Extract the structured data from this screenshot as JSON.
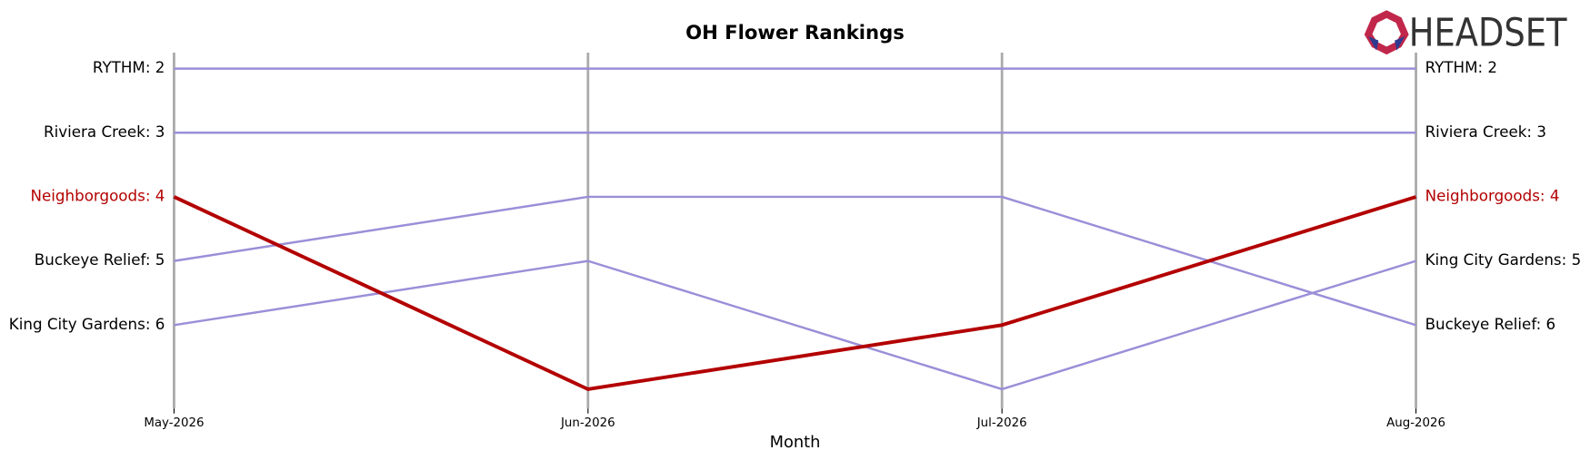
{
  "chart_data": {
    "type": "bump",
    "title": "OH Flower Rankings",
    "x_label": "Month",
    "logo": "HEADSET",
    "categories": [
      "May-2026",
      "Jun-2026",
      "Jul-2026",
      "Aug-2026"
    ],
    "ylim": [
      7.3,
      1.75
    ],
    "inverted": true,
    "series": [
      {
        "name": "RYTHM",
        "color": "#9a8fd8",
        "values": [
          2,
          2,
          2,
          2
        ],
        "value_labels": [
          "RYTHM: 2",
          null,
          null,
          "RYTHM: 2"
        ]
      },
      {
        "name": "Riviera Creek",
        "color": "#9a8fd8",
        "values": [
          3,
          3,
          3,
          3
        ],
        "value_labels": [
          "Riviera Creek: 3",
          null,
          null,
          "Riviera Creek: 3"
        ]
      },
      {
        "name": "Neighborgoods",
        "color": "#b30000",
        "highlight": true,
        "values": [
          4,
          7,
          6,
          4
        ],
        "value_labels": [
          "Neighborgoods: 4",
          null,
          null,
          "Neighborgoods: 4"
        ]
      },
      {
        "name": "Buckeye Relief",
        "color": "#9a8fd8",
        "values": [
          5,
          4,
          4,
          6
        ],
        "value_labels": [
          "Buckeye Relief: 5",
          null,
          null,
          "Buckeye Relief: 6"
        ]
      },
      {
        "name": "King City Gardens",
        "color": "#9a8fd8",
        "values": [
          6,
          5,
          7,
          5
        ],
        "value_labels": [
          "King City Gardens: 6",
          null,
          null,
          "King City Gardens: 5"
        ]
      }
    ]
  }
}
